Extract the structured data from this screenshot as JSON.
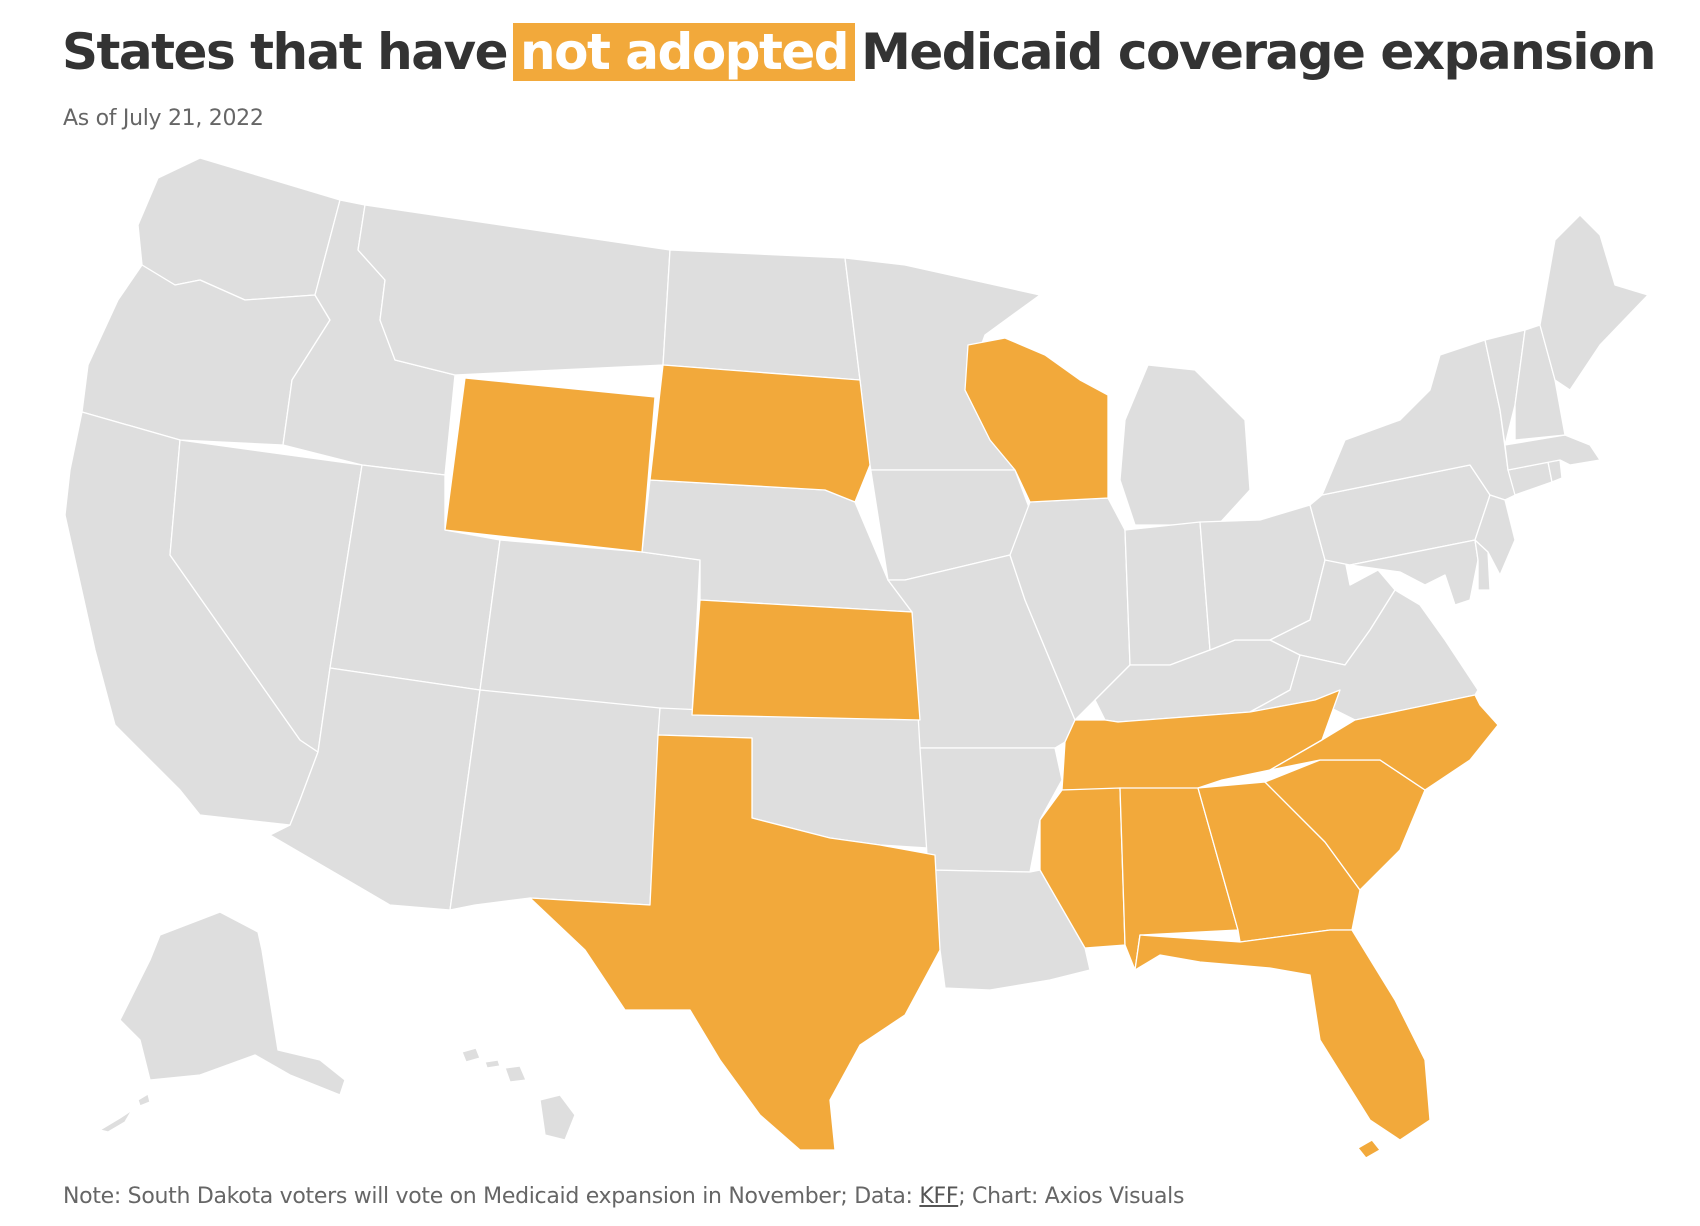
{
  "title": {
    "before": "States that have",
    "highlight": "not adopted",
    "after": "Medicaid coverage expansion"
  },
  "subtitle": "As of July 21, 2022",
  "note": {
    "text_before": "Note: South Dakota voters will vote on Medicaid expansion in November; Data: ",
    "source_link": "KFF",
    "text_after": "; Chart: Axios Visuals"
  },
  "colors": {
    "not_adopted": "#F2A93B",
    "adopted": "#DEDEDE",
    "border": "#FFFFFF",
    "text": "#333333",
    "muted": "#666666"
  },
  "map": {
    "states_not_adopted": [
      "Wyoming",
      "South Dakota",
      "Wisconsin",
      "Kansas",
      "Texas",
      "Tennessee",
      "Mississippi",
      "Alabama",
      "Georgia",
      "South Carolina",
      "North Carolina",
      "Florida"
    ],
    "states_adopted": [
      "Washington",
      "Oregon",
      "California",
      "Idaho",
      "Nevada",
      "Montana",
      "Utah",
      "Arizona",
      "Colorado",
      "New Mexico",
      "North Dakota",
      "Nebraska",
      "Oklahoma",
      "Minnesota",
      "Iowa",
      "Missouri",
      "Arkansas",
      "Louisiana",
      "Illinois",
      "Michigan",
      "Indiana",
      "Kentucky",
      "Ohio",
      "West Virginia",
      "Virginia",
      "Pennsylvania",
      "New York",
      "Maryland",
      "Delaware",
      "New Jersey",
      "Connecticut",
      "Rhode Island",
      "Massachusetts",
      "Vermont",
      "New Hampshire",
      "Maine",
      "Alaska",
      "Hawaii"
    ]
  }
}
